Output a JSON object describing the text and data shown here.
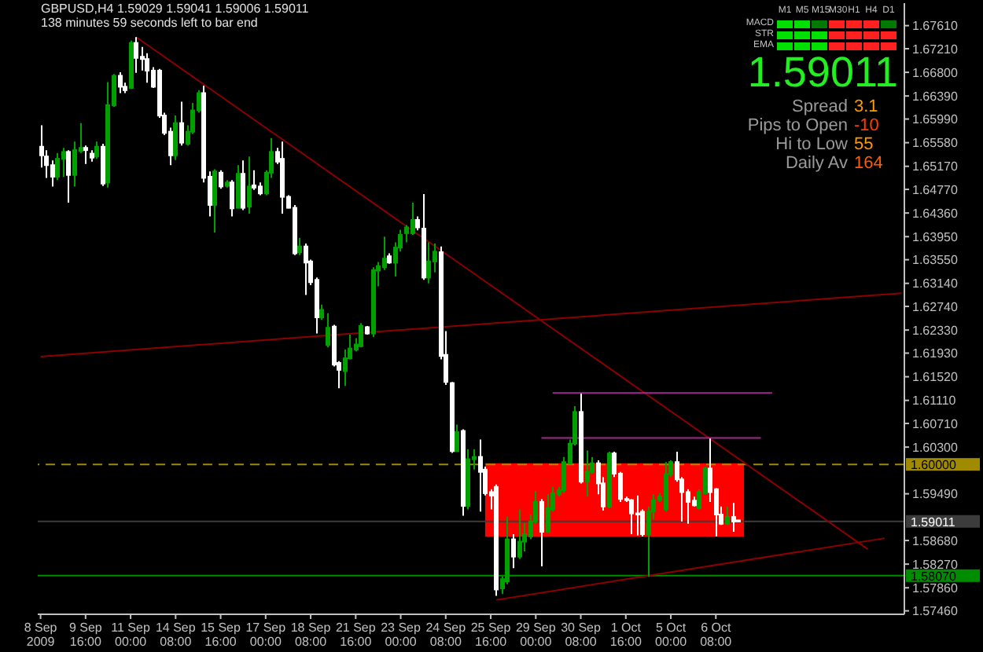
{
  "chart_data": {
    "type": "candlestick",
    "title": "GBPUSD,H4 1.59029 1.59041 1.59006 1.59011",
    "subtitle": "138 minutes 59 seconds left to bar end",
    "annotations": [
      "M1",
      "M5",
      "M15",
      "M30",
      "H1",
      "H4",
      "D1",
      "MACD",
      "STR",
      "EMA",
      "1.59011",
      "Spread",
      "3.1",
      "Pips to Open",
      "-10",
      "Hi to Low",
      "55",
      "Daily Av",
      "164"
    ],
    "categories": [
      "8 Sep 2009",
      null,
      null,
      null,
      null,
      null,
      null,
      null,
      "9 Sep 16:00",
      null,
      null,
      null,
      null,
      null,
      null,
      null,
      "11 Sep 00:00",
      null,
      null,
      null,
      null,
      null,
      null,
      null,
      "14 Sep 08:00",
      null,
      null,
      null,
      null,
      null,
      null,
      null,
      "15 Sep 16:00",
      null,
      null,
      null,
      null,
      null,
      null,
      null,
      "17 Sep 00:00",
      null,
      null,
      null,
      null,
      null,
      null,
      null,
      "18 Sep 08:00",
      null,
      null,
      null,
      null,
      null,
      null,
      null,
      "21 Sep 16:00",
      null,
      null,
      null,
      null,
      null,
      null,
      null,
      "23 Sep 00:00",
      null,
      null,
      null,
      null,
      null,
      null,
      null,
      "24 Sep 08:00",
      null,
      null,
      null,
      null,
      null,
      null,
      null,
      "25 Sep 16:00",
      null,
      null,
      null,
      null,
      null,
      null,
      null,
      "29 Sep 00:00",
      null,
      null,
      null,
      null,
      null,
      null,
      null,
      "30 Sep 08:00",
      null,
      null,
      null,
      null,
      null,
      null,
      null,
      "1 Oct 16:00",
      null,
      null,
      null,
      null,
      null,
      null,
      null,
      "5 Oct 00:00",
      null,
      null,
      null,
      null,
      null,
      null,
      null,
      "6 Oct 08:00",
      null,
      null,
      null,
      null,
      null,
      null,
      null,
      null,
      null,
      null,
      null,
      null,
      null,
      null,
      null,
      null,
      null,
      null,
      null,
      null,
      null,
      null,
      null,
      null,
      null,
      null,
      null,
      null,
      null,
      null,
      null,
      null,
      null
    ],
    "ohlc": [
      [
        1.6551,
        1.6588,
        1.6515,
        1.6536
      ],
      [
        1.6534,
        1.6545,
        1.6497,
        1.6519
      ],
      [
        1.6519,
        1.6527,
        1.6482,
        1.6499
      ],
      [
        1.6499,
        1.654,
        1.6493,
        1.653
      ],
      [
        1.653,
        1.6549,
        1.6499,
        1.6542
      ],
      [
        1.6542,
        1.6545,
        1.6454,
        1.6502
      ],
      [
        1.6502,
        1.656,
        1.6482,
        1.6545
      ],
      [
        1.6544,
        1.6592,
        1.654,
        1.6549
      ],
      [
        1.6549,
        1.6553,
        1.6521,
        1.6545
      ],
      [
        1.6539,
        1.6545,
        1.6525,
        1.6532
      ],
      [
        1.6534,
        1.656,
        1.653,
        1.6551
      ],
      [
        1.6551,
        1.6556,
        1.6483,
        1.6487
      ],
      [
        1.6489,
        1.6663,
        1.648,
        1.6623
      ],
      [
        1.6623,
        1.6677,
        1.662,
        1.6674
      ],
      [
        1.6674,
        1.668,
        1.6644,
        1.6655
      ],
      [
        1.6655,
        1.6662,
        1.6644,
        1.6649
      ],
      [
        1.6653,
        1.6735,
        1.6651,
        1.6731
      ],
      [
        1.6731,
        1.6741,
        1.6679,
        1.6705
      ],
      [
        1.6707,
        1.6724,
        1.6683,
        1.6703
      ],
      [
        1.6703,
        1.6713,
        1.6662,
        1.6683
      ],
      [
        1.6683,
        1.6689,
        1.6653,
        1.6655
      ],
      [
        1.6683,
        1.6686,
        1.6601,
        1.6605
      ],
      [
        1.6605,
        1.661,
        1.6571,
        1.6575
      ],
      [
        1.6577,
        1.6584,
        1.6519,
        1.6536
      ],
      [
        1.6536,
        1.6605,
        1.6528,
        1.6592
      ],
      [
        1.6592,
        1.6629,
        1.6553,
        1.6558
      ],
      [
        1.6556,
        1.6588,
        1.6553,
        1.6577
      ],
      [
        1.6577,
        1.6627,
        1.6573,
        1.6614
      ],
      [
        1.6614,
        1.6649,
        1.661,
        1.6644
      ],
      [
        1.6644,
        1.6657,
        1.6489,
        1.6497
      ],
      [
        1.6499,
        1.6508,
        1.643,
        1.645
      ],
      [
        1.645,
        1.6512,
        1.6402,
        1.6508
      ],
      [
        1.6506,
        1.651,
        1.6478,
        1.6482
      ],
      [
        1.6483,
        1.6493,
        1.648,
        1.6489
      ],
      [
        1.6489,
        1.6493,
        1.643,
        1.6444
      ],
      [
        1.6445,
        1.6519,
        1.6444,
        1.6504
      ],
      [
        1.6504,
        1.6527,
        1.6441,
        1.6445
      ],
      [
        1.6447,
        1.6534,
        1.6435,
        1.6482
      ],
      [
        1.6484,
        1.651,
        1.6476,
        1.648
      ],
      [
        1.6482,
        1.6489,
        1.6467,
        1.647
      ],
      [
        1.647,
        1.651,
        1.6467,
        1.6506
      ],
      [
        1.6506,
        1.6566,
        1.6497,
        1.6542
      ],
      [
        1.6542,
        1.6549,
        1.6521,
        1.6525
      ],
      [
        1.653,
        1.656,
        1.6435,
        1.6464
      ],
      [
        1.6464,
        1.6467,
        1.6444,
        1.6445
      ],
      [
        1.6445,
        1.645,
        1.6363,
        1.6366
      ],
      [
        1.6368,
        1.6393,
        1.6363,
        1.6378
      ],
      [
        1.6378,
        1.6383,
        1.6294,
        1.635
      ],
      [
        1.6352,
        1.6355,
        1.6311,
        1.6316
      ],
      [
        1.632,
        1.6324,
        1.6227,
        1.6255
      ],
      [
        1.6255,
        1.6277,
        1.6251,
        1.6268
      ],
      [
        1.6207,
        1.6262,
        1.6203,
        1.6237
      ],
      [
        1.6239,
        1.6242,
        1.617,
        1.6173
      ],
      [
        1.6176,
        1.6179,
        1.6132,
        1.6164
      ],
      [
        1.6162,
        1.6199,
        1.6136,
        1.6184
      ],
      [
        1.6184,
        1.6225,
        1.6182,
        1.6201
      ],
      [
        1.6199,
        1.6219,
        1.6196,
        1.6208
      ],
      [
        1.6205,
        1.6245,
        1.6203,
        1.624
      ],
      [
        1.6238,
        1.624,
        1.6225,
        1.6227
      ],
      [
        1.6227,
        1.6342,
        1.6221,
        1.6337
      ],
      [
        1.6336,
        1.6351,
        1.6309,
        1.6344
      ],
      [
        1.6342,
        1.6395,
        1.6337,
        1.6357
      ],
      [
        1.6361,
        1.6366,
        1.6348,
        1.635
      ],
      [
        1.635,
        1.6385,
        1.6326,
        1.6376
      ],
      [
        1.6376,
        1.6407,
        1.6369,
        1.6398
      ],
      [
        1.6401,
        1.6415,
        1.6385,
        1.6411
      ],
      [
        1.6401,
        1.6454,
        1.6398,
        1.6424
      ],
      [
        1.6424,
        1.643,
        1.6406,
        1.6411
      ],
      [
        1.6409,
        1.6469,
        1.632,
        1.6324
      ],
      [
        1.6324,
        1.6385,
        1.6314,
        1.6352
      ],
      [
        1.6352,
        1.6383,
        1.6333,
        1.6369
      ],
      [
        1.6368,
        1.6378,
        1.6182,
        1.6188
      ],
      [
        1.619,
        1.6231,
        1.6138,
        1.6143
      ],
      [
        1.6141,
        1.6143,
        1.602,
        1.6023
      ],
      [
        1.6023,
        1.6069,
        1.6022,
        1.6056
      ],
      [
        1.6058,
        1.6061,
        1.5911,
        1.5928
      ],
      [
        1.5928,
        1.6026,
        1.5922,
        1.6009
      ],
      [
        1.6009,
        1.6026,
        1.5991,
        1.6013
      ],
      [
        1.6013,
        1.6043,
        1.5918,
        1.5987
      ],
      [
        1.5991,
        1.5996,
        1.5946,
        1.595
      ],
      [
        1.5952,
        1.5957,
        1.5922,
        1.5946
      ],
      [
        1.5961,
        1.5965,
        1.5772,
        1.5783
      ],
      [
        1.5785,
        1.5806,
        1.5775,
        1.5801
      ],
      [
        1.5797,
        1.5909,
        1.5792,
        1.587
      ],
      [
        1.587,
        1.5879,
        1.582,
        1.584
      ],
      [
        1.584,
        1.5922,
        1.5836,
        1.5866
      ],
      [
        1.5866,
        1.5898,
        1.5849,
        1.5879
      ],
      [
        1.5875,
        1.5913,
        1.587,
        1.5901
      ],
      [
        1.5901,
        1.5954,
        1.5897,
        1.5935
      ],
      [
        1.5935,
        1.594,
        1.5823,
        1.5883
      ],
      [
        1.5883,
        1.5948,
        1.5881,
        1.5924
      ],
      [
        1.5922,
        1.5961,
        1.5918,
        1.595
      ],
      [
        1.5948,
        1.5961,
        1.5944,
        1.5955
      ],
      [
        1.5955,
        1.6013,
        1.595,
        1.6004
      ],
      [
        1.6002,
        1.6043,
        1.6,
        1.6036
      ],
      [
        1.6036,
        1.6101,
        1.6033,
        1.6091
      ],
      [
        1.6091,
        1.6123,
        1.5967,
        1.597
      ],
      [
        1.597,
        1.6024,
        1.5944,
        1.5987
      ],
      [
        1.5987,
        1.6013,
        1.5984,
        1.6002
      ],
      [
        1.6002,
        1.6007,
        1.5948,
        1.5967
      ],
      [
        1.5967,
        1.5978,
        1.592,
        1.5927
      ],
      [
        1.5927,
        1.6022,
        1.5924,
        1.6019
      ],
      [
        1.6019,
        1.6022,
        1.5978,
        1.5984
      ],
      [
        1.5984,
        1.5987,
        1.5935,
        1.594
      ],
      [
        1.594,
        1.5944,
        1.5935,
        1.5938
      ],
      [
        1.5938,
        1.594,
        1.5879,
        1.5915
      ],
      [
        1.5915,
        1.5946,
        1.5877,
        1.5913
      ],
      [
        1.5918,
        1.5922,
        1.5875,
        1.5879
      ],
      [
        1.5879,
        1.5927,
        1.5805,
        1.5918
      ],
      [
        1.5918,
        1.5948,
        1.5905,
        1.5938
      ],
      [
        1.5938,
        1.595,
        1.5935,
        1.5944
      ],
      [
        1.5922,
        1.6004,
        1.5918,
        1.5983
      ],
      [
        1.5983,
        1.6007,
        1.5978,
        1.6004
      ],
      [
        1.6004,
        1.6022,
        1.597,
        1.5974
      ],
      [
        1.5974,
        1.5978,
        1.5901,
        1.5952
      ],
      [
        1.5952,
        1.5957,
        1.5897,
        1.5935
      ],
      [
        1.5937,
        1.5944,
        1.5927,
        1.5929
      ],
      [
        1.5924,
        1.5957,
        1.5922,
        1.5952
      ],
      [
        1.595,
        1.5996,
        1.5948,
        1.5993
      ],
      [
        1.5993,
        1.6045,
        1.5935,
        1.5952
      ],
      [
        1.5957,
        1.5959,
        1.5875,
        1.5913
      ],
      [
        1.5913,
        1.5927,
        1.5895,
        1.5897
      ],
      [
        1.5897,
        1.5927,
        1.5895,
        1.5909
      ],
      [
        1.5909,
        1.5933,
        1.5883,
        1.5901
      ],
      [
        1.59029,
        1.59041,
        1.59006,
        1.59011
      ],
      null,
      null,
      null,
      null,
      null,
      null,
      null,
      null,
      null,
      null,
      null,
      null,
      null,
      null,
      null,
      null,
      null,
      null,
      null,
      null,
      null,
      null,
      null,
      null,
      null,
      null,
      null,
      null,
      null
    ],
    "colors": [
      "#ffffff",
      "#ffffff",
      "#ffffff",
      "#00a000",
      "#00a000",
      "#ffffff",
      "#00a000",
      "#00a000",
      "#ffffff",
      "#ffffff",
      "#00a000",
      "#ffffff",
      "#00a000",
      "#00a000",
      "#ffffff",
      "#ffffff",
      "#00a000",
      "#ffffff",
      "#ffffff",
      "#ffffff",
      "#ffffff",
      "#ffffff",
      "#ffffff",
      "#ffffff",
      "#00a000",
      "#ffffff",
      "#00a000",
      "#00a000",
      "#00a000",
      "#ffffff",
      "#ffffff",
      "#00a000",
      "#ffffff",
      "#00a000",
      "#ffffff",
      "#00a000",
      "#ffffff",
      "#00a000",
      "#ffffff",
      "#ffffff",
      "#00a000",
      "#00a000",
      "#ffffff",
      "#ffffff",
      "#ffffff",
      "#ffffff",
      "#00a000",
      "#ffffff",
      "#ffffff",
      "#ffffff",
      "#00a000",
      "#00a000",
      "#ffffff",
      "#ffffff",
      "#00a000",
      "#00a000",
      "#00a000",
      "#00a000",
      "#ffffff",
      "#00a000",
      "#00a000",
      "#00a000",
      "#ffffff",
      "#00a000",
      "#00a000",
      "#00a000",
      "#00a000",
      "#ffffff",
      "#ffffff",
      "#00a000",
      "#00a000",
      "#ffffff",
      "#ffffff",
      "#ffffff",
      "#00a000",
      "#ffffff",
      "#00a000",
      "#00a000",
      "#ffffff",
      "#ffffff",
      "#ffffff",
      "#ffffff",
      "#00a000",
      "#00a000",
      "#ffffff",
      "#00a000",
      "#00a000",
      "#00a000",
      "#00a000",
      "#ffffff",
      "#00a000",
      "#00a000",
      "#00a000",
      "#00a000",
      "#00a000",
      "#00a000",
      "#ffffff",
      "#00a000",
      "#00a000",
      "#ffffff",
      "#ffffff",
      "#00a000",
      "#ffffff",
      "#ffffff",
      "#ffffff",
      "#ffffff",
      "#ffffff",
      "#ffffff",
      "#00a000",
      "#00a000",
      "#00a000",
      "#00a000",
      "#00a000",
      "#ffffff",
      "#ffffff",
      "#ffffff",
      "#ffffff",
      "#00a000",
      "#00a000",
      "#ffffff",
      "#ffffff",
      "#ffffff",
      "#00a000",
      "#ffffff",
      "#ffffff",
      null,
      null,
      null,
      null,
      null,
      null,
      null,
      null,
      null,
      null,
      null,
      null,
      null,
      null,
      null,
      null,
      null,
      null,
      null,
      null,
      null,
      null,
      null,
      null,
      null,
      null,
      null,
      null,
      null
    ],
    "series": [
      {
        "type": "area",
        "color": "#ff0000",
        "values": [
          null,
          null,
          null,
          null,
          null,
          null,
          null,
          null,
          null,
          null,
          null,
          null,
          null,
          null,
          null,
          null,
          null,
          null,
          null,
          null,
          null,
          null,
          null,
          null,
          null,
          null,
          null,
          null,
          null,
          null,
          null,
          null,
          null,
          null,
          null,
          null,
          null,
          null,
          null,
          null,
          null,
          null,
          null,
          null,
          null,
          null,
          null,
          null,
          null,
          null,
          null,
          null,
          null,
          null,
          null,
          null,
          null,
          null,
          null,
          null,
          null,
          null,
          null,
          null,
          null,
          null,
          null,
          null,
          null,
          null,
          null,
          null,
          null,
          null,
          null,
          null,
          null,
          null,
          null,
          null,
          null,
          null,
          null,
          null,
          null,
          null,
          null,
          null,
          null,
          null,
          null,
          null,
          null,
          null,
          null,
          null,
          null,
          null,
          null,
          null,
          null,
          null,
          null,
          null,
          null,
          null,
          null,
          null,
          null,
          null,
          null,
          null,
          null,
          null,
          null,
          null,
          null,
          null,
          null,
          null,
          null,
          null,
          null,
          null,
          null,
          null,
          null,
          null,
          null,
          null,
          null,
          null,
          null,
          null,
          null,
          null,
          null,
          null,
          null,
          null,
          null,
          null,
          null,
          null,
          null,
          null,
          null,
          null,
          null,
          null,
          null,
          null,
          null,
          null
        ],
        "lower": [
          null,
          null,
          null,
          null,
          null,
          null,
          null,
          null,
          null,
          null,
          null,
          null,
          null,
          null,
          null,
          null,
          null,
          null,
          null,
          null,
          null,
          null,
          null,
          null,
          null,
          null,
          null,
          null,
          null,
          null,
          null,
          null,
          null,
          null,
          null,
          null,
          null,
          null,
          null,
          null,
          null,
          null,
          null,
          null,
          null,
          null,
          null,
          null,
          null,
          null,
          null,
          null,
          null,
          null,
          null,
          null,
          null,
          null,
          null,
          null,
          null,
          null,
          null,
          null,
          null,
          null,
          null,
          null,
          null,
          null,
          null,
          null,
          null,
          null,
          null,
          null,
          null,
          null,
          null,
          1.5875,
          null,
          null,
          null,
          null,
          null,
          null,
          null,
          null,
          null,
          null,
          null,
          null,
          null,
          null,
          null,
          null,
          null,
          null,
          null,
          null,
          null,
          null,
          null,
          null,
          null,
          null,
          null,
          null,
          null,
          null,
          null,
          null,
          null,
          null,
          null,
          null,
          null,
          null,
          null,
          null,
          null,
          null,
          null,
          null,
          null,
          1.5875,
          null,
          null,
          null,
          null,
          null,
          null,
          null,
          null,
          null,
          null,
          null,
          null,
          null,
          null,
          null,
          null,
          null,
          null,
          null,
          null,
          null,
          null,
          null,
          null,
          null,
          null,
          null,
          null
        ],
        "upper": [
          null,
          null,
          null,
          null,
          null,
          null,
          null,
          null,
          null,
          null,
          null,
          null,
          null,
          null,
          null,
          null,
          null,
          null,
          null,
          null,
          null,
          null,
          null,
          null,
          null,
          null,
          null,
          null,
          null,
          null,
          null,
          null,
          null,
          null,
          null,
          null,
          null,
          null,
          null,
          null,
          null,
          null,
          null,
          null,
          null,
          null,
          null,
          null,
          null,
          null,
          null,
          null,
          null,
          null,
          null,
          null,
          null,
          null,
          null,
          null,
          null,
          null,
          null,
          null,
          null,
          null,
          null,
          null,
          null,
          null,
          null,
          null,
          null,
          null,
          null,
          null,
          null,
          null,
          null,
          1.6002,
          null,
          null,
          null,
          null,
          null,
          null,
          null,
          null,
          null,
          null,
          null,
          null,
          null,
          null,
          null,
          null,
          null,
          null,
          null,
          null,
          null,
          null,
          null,
          null,
          null,
          null,
          null,
          null,
          null,
          null,
          null,
          null,
          null,
          null,
          null,
          null,
          null,
          null,
          null,
          null,
          null,
          null,
          null,
          null,
          null,
          1.6002,
          null,
          null,
          null,
          null,
          null,
          null,
          null,
          null,
          null,
          null,
          null,
          null,
          null,
          null,
          null,
          null,
          null,
          null,
          null,
          null,
          null,
          null,
          null,
          null,
          null,
          null,
          null,
          null
        ]
      },
      {
        "type": "line",
        "color": "#8b0000",
        "values": [
          null,
          null,
          null,
          null,
          null,
          null,
          null,
          null,
          null,
          null,
          null,
          null,
          null,
          null,
          null,
          null,
          null,
          1.6741,
          null,
          null,
          null,
          null,
          null,
          null,
          null,
          null,
          null,
          null,
          null,
          null,
          null,
          null,
          null,
          null,
          null,
          null,
          null,
          null,
          null,
          null,
          null,
          null,
          null,
          null,
          null,
          null,
          null,
          null,
          null,
          null,
          null,
          null,
          null,
          null,
          null,
          null,
          null,
          null,
          null,
          null,
          null,
          null,
          null,
          null,
          null,
          null,
          null,
          null,
          null,
          null,
          null,
          null,
          null,
          null,
          null,
          null,
          null,
          null,
          null,
          null,
          null,
          null,
          null,
          null,
          null,
          null,
          null,
          null,
          null,
          null,
          null,
          null,
          null,
          null,
          null,
          null,
          null,
          null,
          null,
          null,
          null,
          null,
          null,
          null,
          null,
          null,
          null,
          null,
          null,
          null,
          null,
          null,
          null,
          null,
          null,
          null,
          null,
          null,
          null,
          null,
          null,
          null,
          null,
          null,
          null,
          null,
          null,
          null,
          null,
          null,
          null,
          null,
          null,
          null,
          null,
          null,
          null,
          null,
          null,
          null,
          null,
          null,
          null,
          null,
          null,
          null,
          null,
          1.5853,
          null,
          null,
          null,
          null,
          null,
          null
        ]
      },
      {
        "type": "line",
        "color": "#8b0000",
        "values": [
          1.6187,
          null,
          null,
          null,
          null,
          null,
          null,
          null,
          null,
          null,
          null,
          null,
          null,
          null,
          null,
          null,
          null,
          null,
          null,
          null,
          null,
          null,
          null,
          null,
          null,
          null,
          null,
          null,
          null,
          null,
          null,
          null,
          null,
          null,
          null,
          null,
          null,
          null,
          null,
          null,
          null,
          null,
          null,
          null,
          null,
          null,
          null,
          null,
          null,
          null,
          null,
          null,
          null,
          null,
          null,
          null,
          null,
          null,
          null,
          null,
          null,
          null,
          null,
          null,
          null,
          null,
          null,
          null,
          null,
          null,
          null,
          null,
          null,
          null,
          null,
          null,
          null,
          null,
          null,
          null,
          null,
          null,
          null,
          null,
          null,
          null,
          null,
          null,
          null,
          null,
          null,
          null,
          null,
          null,
          null,
          null,
          null,
          null,
          null,
          null,
          null,
          null,
          null,
          null,
          null,
          null,
          null,
          null,
          null,
          null,
          null,
          null,
          null,
          null,
          null,
          null,
          null,
          null,
          null,
          null,
          null,
          null,
          null,
          null,
          null,
          null,
          null,
          null,
          null,
          null,
          null,
          null,
          null,
          null,
          null,
          null,
          null,
          null,
          null,
          null,
          null,
          null,
          null,
          null,
          null,
          null,
          null,
          null,
          null,
          null,
          null,
          null,
          null,
          1.6297
        ]
      },
      {
        "type": "line",
        "color": "#8b0000",
        "values": [
          null,
          null,
          null,
          null,
          null,
          null,
          null,
          null,
          null,
          null,
          null,
          null,
          null,
          null,
          null,
          null,
          null,
          null,
          null,
          null,
          null,
          null,
          null,
          null,
          null,
          null,
          null,
          null,
          null,
          null,
          null,
          null,
          null,
          null,
          null,
          null,
          null,
          null,
          null,
          null,
          null,
          null,
          null,
          null,
          null,
          null,
          null,
          null,
          null,
          null,
          null,
          null,
          null,
          null,
          null,
          null,
          null,
          null,
          null,
          null,
          null,
          null,
          null,
          null,
          null,
          null,
          null,
          null,
          null,
          null,
          null,
          null,
          null,
          null,
          null,
          null,
          null,
          null,
          null,
          null,
          null,
          1.5765,
          null,
          null,
          null,
          null,
          null,
          null,
          null,
          null,
          null,
          null,
          null,
          null,
          null,
          null,
          null,
          null,
          null,
          null,
          null,
          null,
          null,
          null,
          null,
          null,
          null,
          null,
          null,
          null,
          null,
          null,
          null,
          null,
          null,
          null,
          null,
          null,
          null,
          null,
          null,
          null,
          null,
          null,
          null,
          null,
          null,
          null,
          null,
          null,
          null,
          null,
          null,
          null,
          null,
          null,
          null,
          null,
          null,
          null,
          null,
          null,
          null,
          null,
          null,
          null,
          null,
          null,
          null,
          null,
          1.5872,
          null,
          null,
          null
        ]
      },
      {
        "type": "line",
        "color": "#a0298e",
        "values": [
          null,
          null,
          null,
          null,
          null,
          null,
          null,
          null,
          null,
          null,
          null,
          null,
          null,
          null,
          null,
          null,
          null,
          null,
          null,
          null,
          null,
          null,
          null,
          null,
          null,
          null,
          null,
          null,
          null,
          null,
          null,
          null,
          null,
          null,
          null,
          null,
          null,
          null,
          null,
          null,
          null,
          null,
          null,
          null,
          null,
          null,
          null,
          null,
          null,
          null,
          null,
          null,
          null,
          null,
          null,
          null,
          null,
          null,
          null,
          null,
          null,
          null,
          null,
          null,
          null,
          null,
          null,
          null,
          null,
          null,
          null,
          null,
          null,
          null,
          null,
          null,
          null,
          null,
          null,
          null,
          null,
          null,
          null,
          null,
          null,
          null,
          null,
          null,
          null,
          null,
          null,
          1.6124,
          null,
          null,
          null,
          null,
          null,
          null,
          null,
          null,
          null,
          null,
          null,
          null,
          null,
          null,
          null,
          null,
          null,
          null,
          null,
          null,
          null,
          null,
          null,
          null,
          null,
          null,
          null,
          null,
          null,
          null,
          null,
          null,
          null,
          null,
          null,
          null,
          null,
          null,
          1.6124,
          null,
          null,
          null,
          null,
          null,
          null,
          null,
          null,
          null,
          null,
          null,
          null,
          null,
          null,
          null,
          null,
          null,
          null,
          null,
          null,
          null,
          null,
          null
        ]
      },
      {
        "type": "line",
        "color": "#a0298e",
        "values": [
          null,
          null,
          null,
          null,
          null,
          null,
          null,
          null,
          null,
          null,
          null,
          null,
          null,
          null,
          null,
          null,
          null,
          null,
          null,
          null,
          null,
          null,
          null,
          null,
          null,
          null,
          null,
          null,
          null,
          null,
          null,
          null,
          null,
          null,
          null,
          null,
          null,
          null,
          null,
          null,
          null,
          null,
          null,
          null,
          null,
          null,
          null,
          null,
          null,
          null,
          null,
          null,
          null,
          null,
          null,
          null,
          null,
          null,
          null,
          null,
          null,
          null,
          null,
          null,
          null,
          null,
          null,
          null,
          null,
          null,
          null,
          null,
          null,
          null,
          null,
          null,
          null,
          null,
          null,
          null,
          null,
          null,
          null,
          null,
          null,
          null,
          null,
          null,
          null,
          1.6046,
          null,
          null,
          null,
          null,
          null,
          null,
          null,
          null,
          null,
          null,
          null,
          null,
          null,
          null,
          null,
          null,
          null,
          null,
          null,
          null,
          null,
          null,
          null,
          null,
          null,
          null,
          null,
          null,
          null,
          null,
          null,
          null,
          null,
          null,
          null,
          null,
          null,
          null,
          1.6046,
          null,
          null,
          null,
          null,
          null,
          null,
          null,
          null,
          null,
          null,
          null,
          null,
          null,
          null,
          null,
          null,
          null,
          null,
          null,
          null,
          null,
          null,
          null,
          null,
          null
        ]
      }
    ],
    "ylim": [
      1.574,
      1.68
    ],
    "yticks": [
      {
        "value": 1.6761,
        "label": "1.67610"
      },
      {
        "value": 1.6721,
        "label": "1.67210"
      },
      {
        "value": 1.668,
        "label": "1.66800"
      },
      {
        "value": 1.6639,
        "label": "1.66390"
      },
      {
        "value": 1.6599,
        "label": "1.65990"
      },
      {
        "value": 1.6558,
        "label": "1.65580"
      },
      {
        "value": 1.6517,
        "label": "1.65170"
      },
      {
        "value": 1.6477,
        "label": "1.64770"
      },
      {
        "value": 1.6436,
        "label": "1.64360"
      },
      {
        "value": 1.6395,
        "label": "1.63950"
      },
      {
        "value": 1.6355,
        "label": "1.63550"
      },
      {
        "value": 1.6314,
        "label": "1.63140"
      },
      {
        "value": 1.6274,
        "label": "1.62740"
      },
      {
        "value": 1.6233,
        "label": "1.62330"
      },
      {
        "value": 1.6193,
        "label": "1.61930"
      },
      {
        "value": 1.6152,
        "label": "1.61520"
      },
      {
        "value": 1.6111,
        "label": "1.61110"
      },
      {
        "value": 1.6071,
        "label": "1.60710"
      },
      {
        "value": 1.603,
        "label": "1.60300"
      },
      {
        "value": 1.5949,
        "label": "1.59490"
      },
      {
        "value": 1.5868,
        "label": "1.58680"
      },
      {
        "value": 1.5827,
        "label": "1.58270"
      },
      {
        "value": 1.5786,
        "label": "1.57860"
      },
      {
        "value": 1.5746,
        "label": "1.57460"
      }
    ],
    "ref_lines": [
      {
        "axis": "y",
        "value": 1.6,
        "label": "1.60000",
        "color": "#a08a00",
        "line_style": "dashed"
      },
      {
        "axis": "y",
        "value": 1.59011,
        "label": "1.59011",
        "color": "#3c3c3c"
      },
      {
        "axis": "y",
        "value": 1.5807,
        "label": "1.58070",
        "color": "#008c00"
      }
    ]
  }
}
